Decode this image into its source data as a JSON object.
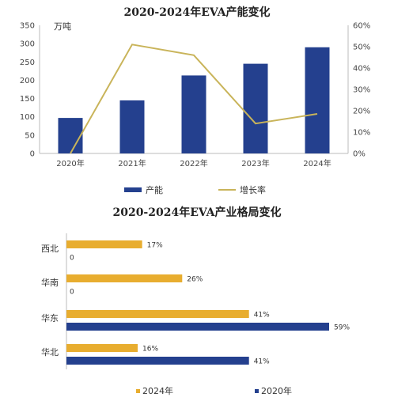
{
  "chart_data": [
    {
      "type": "bar+line",
      "title": "2020-2024年EVA产能变化",
      "unit_label": "万吨",
      "categories": [
        "2020年",
        "2021年",
        "2022年",
        "2023年",
        "2024年"
      ],
      "y_left_ticks": [
        "0",
        "50",
        "100",
        "150",
        "200",
        "250",
        "300",
        "350"
      ],
      "y_left_lim": [
        0,
        350
      ],
      "y_right_ticks": [
        "0%",
        "10%",
        "20%",
        "30%",
        "40%",
        "50%",
        "60%"
      ],
      "y_right_lim": [
        0,
        60
      ],
      "series": [
        {
          "name": "产能",
          "kind": "bar",
          "axis": "left",
          "color": "#24408e",
          "values": [
            97,
            145,
            213,
            245,
            290
          ]
        },
        {
          "name": "增长率",
          "kind": "line",
          "axis": "right",
          "color": "#c9b45a",
          "values": [
            0,
            51,
            46,
            14,
            18.5
          ]
        }
      ],
      "legend": "bottom"
    },
    {
      "type": "bar",
      "orientation": "horizontal",
      "title": "2020-2024年EVA产业格局变化",
      "categories": [
        "西北",
        "华南",
        "华东",
        "华北"
      ],
      "x_lim": [
        0,
        60
      ],
      "series": [
        {
          "name": "2024年",
          "color": "#e8ad2f",
          "values": [
            17,
            26,
            41,
            16
          ],
          "labels": [
            "17%",
            "26%",
            "41%",
            "16%"
          ]
        },
        {
          "name": "2020年",
          "color": "#24408e",
          "values": [
            0,
            0,
            59,
            41
          ],
          "labels": [
            "0",
            "0",
            "59%",
            "41%"
          ]
        }
      ],
      "legend": "bottom"
    }
  ]
}
